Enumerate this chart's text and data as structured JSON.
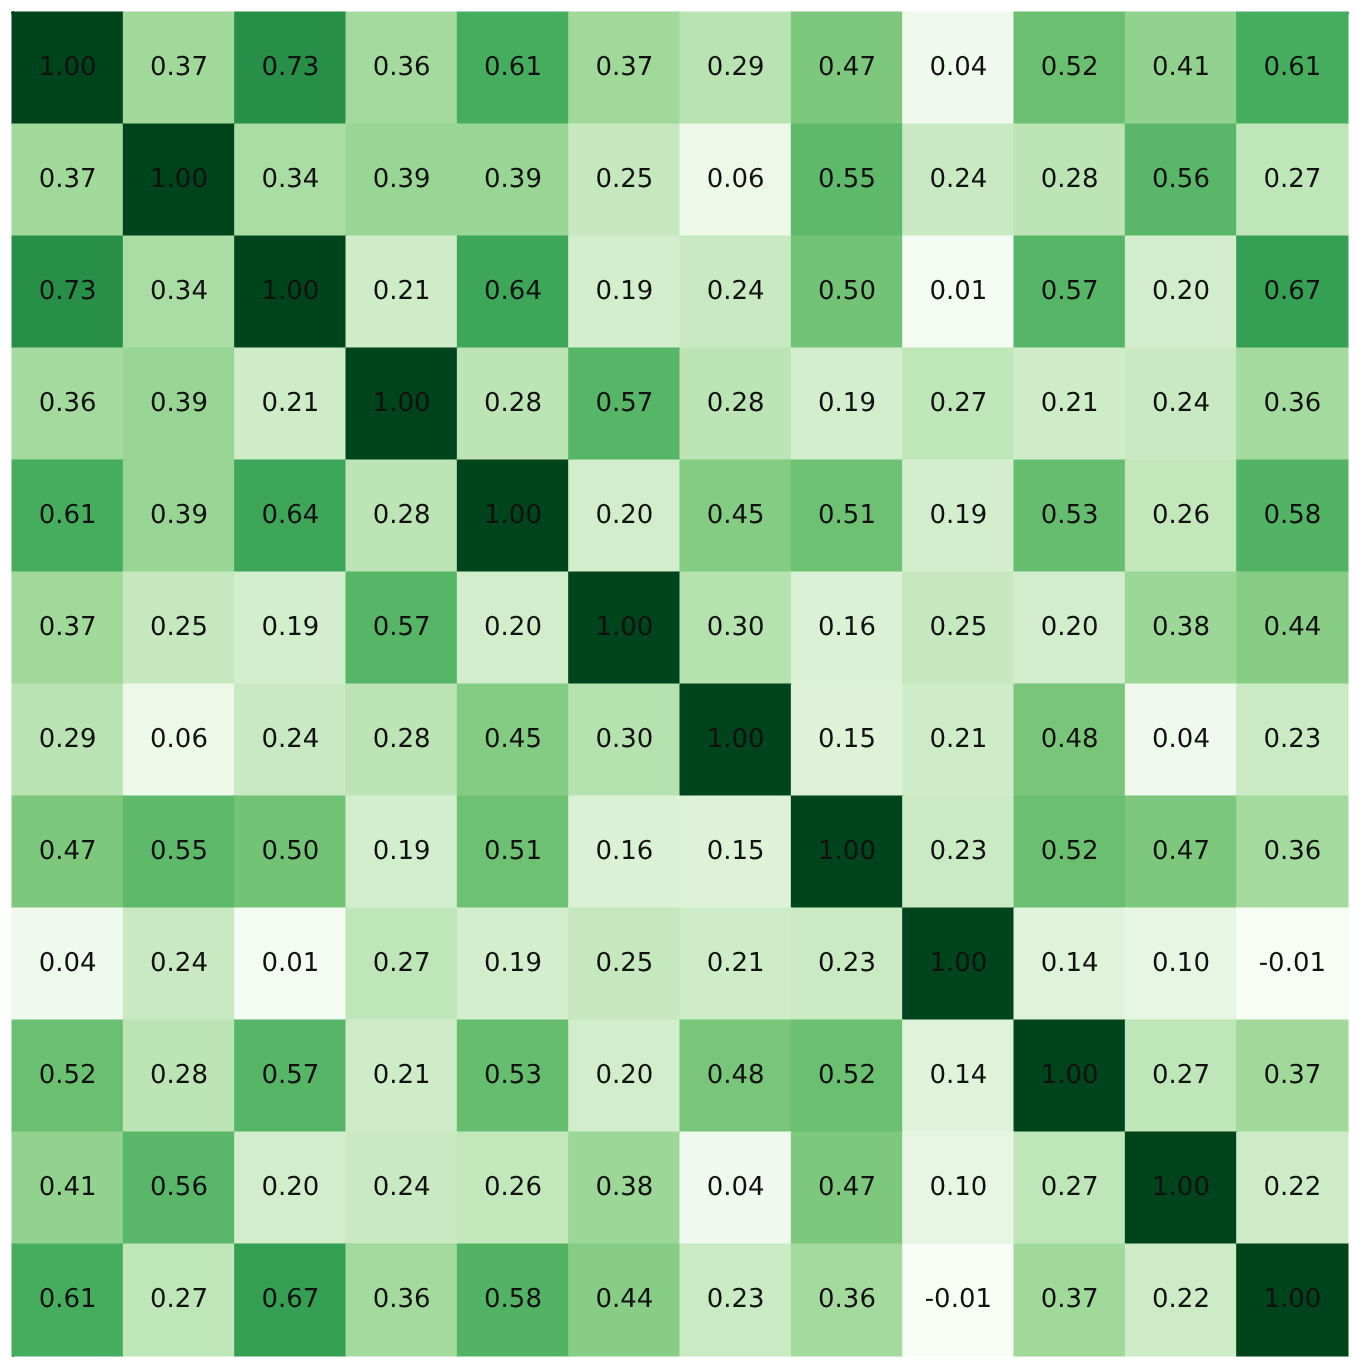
{
  "chart_data": {
    "type": "heatmap",
    "categories": [
      null,
      null,
      null,
      null,
      null,
      null,
      null,
      null,
      null,
      null,
      null,
      null
    ],
    "y_categories": [
      null,
      null,
      null,
      null,
      null,
      null,
      null,
      null,
      null,
      null,
      null,
      null
    ],
    "tick_labels": false,
    "cells": [
      [
        1.0,
        0.37,
        0.73,
        0.36,
        0.61,
        0.37,
        0.29,
        0.47,
        0.04,
        0.52,
        0.41,
        0.61
      ],
      [
        0.37,
        1.0,
        0.34,
        0.39,
        0.39,
        0.25,
        0.06,
        0.55,
        0.24,
        0.28,
        0.56,
        0.27
      ],
      [
        0.73,
        0.34,
        1.0,
        0.21,
        0.64,
        0.19,
        0.24,
        0.5,
        0.01,
        0.57,
        0.2,
        0.67
      ],
      [
        0.36,
        0.39,
        0.21,
        1.0,
        0.28,
        0.57,
        0.28,
        0.19,
        0.27,
        0.21,
        0.24,
        0.36
      ],
      [
        0.61,
        0.39,
        0.64,
        0.28,
        1.0,
        0.2,
        0.45,
        0.51,
        0.19,
        0.53,
        0.26,
        0.58
      ],
      [
        0.37,
        0.25,
        0.19,
        0.57,
        0.2,
        1.0,
        0.3,
        0.16,
        0.25,
        0.2,
        0.38,
        0.44
      ],
      [
        0.29,
        0.06,
        0.24,
        0.28,
        0.45,
        0.3,
        1.0,
        0.15,
        0.21,
        0.48,
        0.04,
        0.23
      ],
      [
        0.47,
        0.55,
        0.5,
        0.19,
        0.51,
        0.16,
        0.15,
        1.0,
        0.23,
        0.52,
        0.47,
        0.36
      ],
      [
        0.04,
        0.24,
        0.01,
        0.27,
        0.19,
        0.25,
        0.21,
        0.23,
        1.0,
        0.14,
        0.1,
        -0.01
      ],
      [
        0.52,
        0.28,
        0.57,
        0.21,
        0.53,
        0.2,
        0.48,
        0.52,
        0.14,
        1.0,
        0.27,
        0.37
      ],
      [
        0.41,
        0.56,
        0.2,
        0.24,
        0.26,
        0.38,
        0.04,
        0.47,
        0.1,
        0.27,
        1.0,
        0.22
      ],
      [
        0.61,
        0.27,
        0.67,
        0.36,
        0.58,
        0.44,
        0.23,
        0.36,
        -0.01,
        0.37,
        0.22,
        1.0
      ]
    ],
    "cell_labels": [
      [
        "1.00",
        "0.37",
        "0.73",
        "0.36",
        "0.61",
        "0.37",
        "0.29",
        "0.47",
        "0.04",
        "0.52",
        "0.41",
        "0.61"
      ],
      [
        "0.37",
        "1.00",
        "0.34",
        "0.39",
        "0.39",
        "0.25",
        "0.06",
        "0.55",
        "0.24",
        "0.28",
        "0.56",
        "0.27"
      ],
      [
        "0.73",
        "0.34",
        "1.00",
        "0.21",
        "0.64",
        "0.19",
        "0.24",
        "0.50",
        "0.01",
        "0.57",
        "0.20",
        "0.67"
      ],
      [
        "0.36",
        "0.39",
        "0.21",
        "1.00",
        "0.28",
        "0.57",
        "0.28",
        "0.19",
        "0.27",
        "0.21",
        "0.24",
        "0.36"
      ],
      [
        "0.61",
        "0.39",
        "0.64",
        "0.28",
        "1.00",
        "0.20",
        "0.45",
        "0.51",
        "0.19",
        "0.53",
        "0.26",
        "0.58"
      ],
      [
        "0.37",
        "0.25",
        "0.19",
        "0.57",
        "0.20",
        "1.00",
        "0.30",
        "0.16",
        "0.25",
        "0.20",
        "0.38",
        "0.44"
      ],
      [
        "0.29",
        "0.06",
        "0.24",
        "0.28",
        "0.45",
        "0.30",
        "1.00",
        "0.15",
        "0.21",
        "0.48",
        "0.04",
        "0.23"
      ],
      [
        "0.47",
        "0.55",
        "0.50",
        "0.19",
        "0.51",
        "0.16",
        "0.15",
        "1.00",
        "0.23",
        "0.52",
        "0.47",
        "0.36"
      ],
      [
        "0.04",
        "0.24",
        "0.01",
        "0.27",
        "0.19",
        "0.25",
        "0.21",
        "0.23",
        "1.00",
        "0.14",
        "0.10",
        "-0.01"
      ],
      [
        "0.52",
        "0.28",
        "0.57",
        "0.21",
        "0.53",
        "0.20",
        "0.48",
        "0.52",
        "0.14",
        "1.00",
        "0.27",
        "0.37"
      ],
      [
        "0.41",
        "0.56",
        "0.20",
        "0.24",
        "0.26",
        "0.38",
        "0.04",
        "0.47",
        "0.10",
        "0.27",
        "1.00",
        "0.22"
      ],
      [
        "0.61",
        "0.27",
        "0.67",
        "0.36",
        "0.58",
        "0.44",
        "0.23",
        "0.36",
        "-0.01",
        "0.37",
        "0.22",
        "1.00"
      ]
    ]
  }
}
